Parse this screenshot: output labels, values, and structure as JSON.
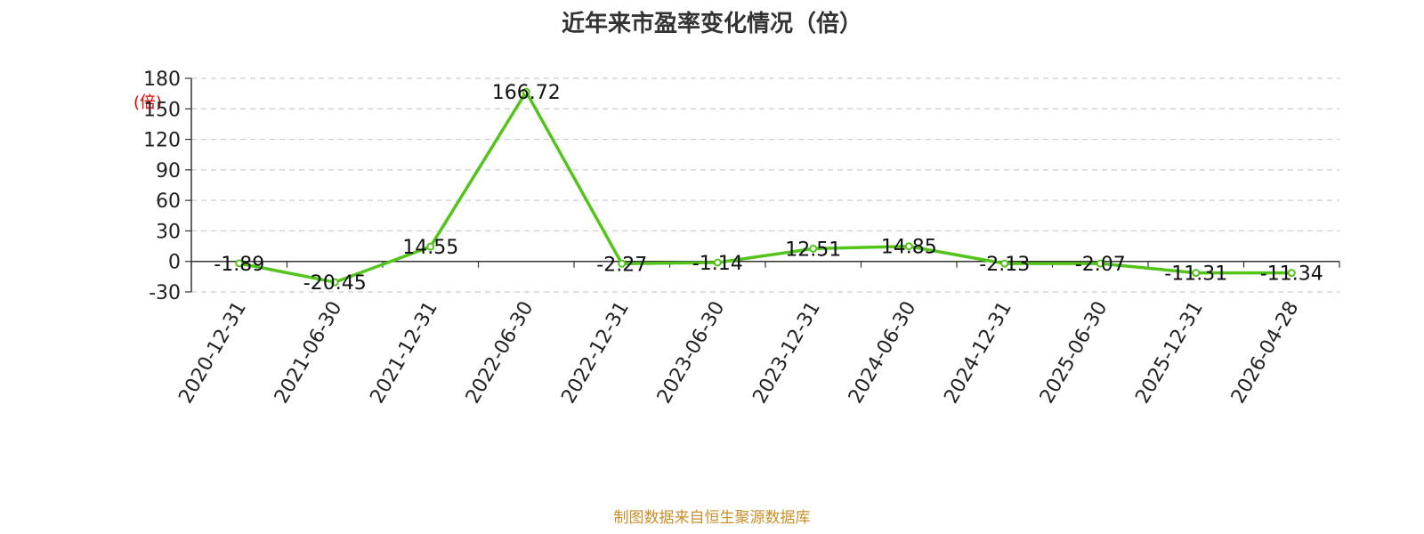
{
  "title": "近年来市盈率变化情况（倍）",
  "source": "制图数据来自恒生聚源数据库",
  "chart_data": {
    "type": "line",
    "title": "近年来市盈率变化情况（倍）",
    "ylabel": "(倍)",
    "xlabel": "",
    "ylim": [
      -30,
      180
    ],
    "yticks": [
      -30,
      0,
      30,
      60,
      90,
      120,
      150,
      180
    ],
    "grid": true,
    "legend": "none",
    "categories": [
      "2020-12-31",
      "2021-06-30",
      "2021-12-31",
      "2022-06-30",
      "2022-12-31",
      "2023-06-30",
      "2023-12-31",
      "2024-06-30",
      "2024-12-31",
      "2025-06-30",
      "2025-12-31",
      "2026-04-28"
    ],
    "series": [
      {
        "values": [
          -1.89,
          -20.45,
          14.55,
          166.72,
          -2.27,
          -1.14,
          12.51,
          14.85,
          -2.13,
          -2.07,
          -11.31,
          -11.34
        ],
        "labels": [
          "-1.89",
          "-20.45",
          "14.55",
          "166.72",
          "-2.27",
          "-1.14",
          "12.51",
          "14.85",
          "-2.13",
          "-2.07",
          "-11.31",
          "-11.34"
        ]
      }
    ],
    "colors": {
      "line": "#52c41a",
      "ylabel": "#e00000",
      "grid": "#cccccc",
      "source": "#c8902a"
    }
  }
}
